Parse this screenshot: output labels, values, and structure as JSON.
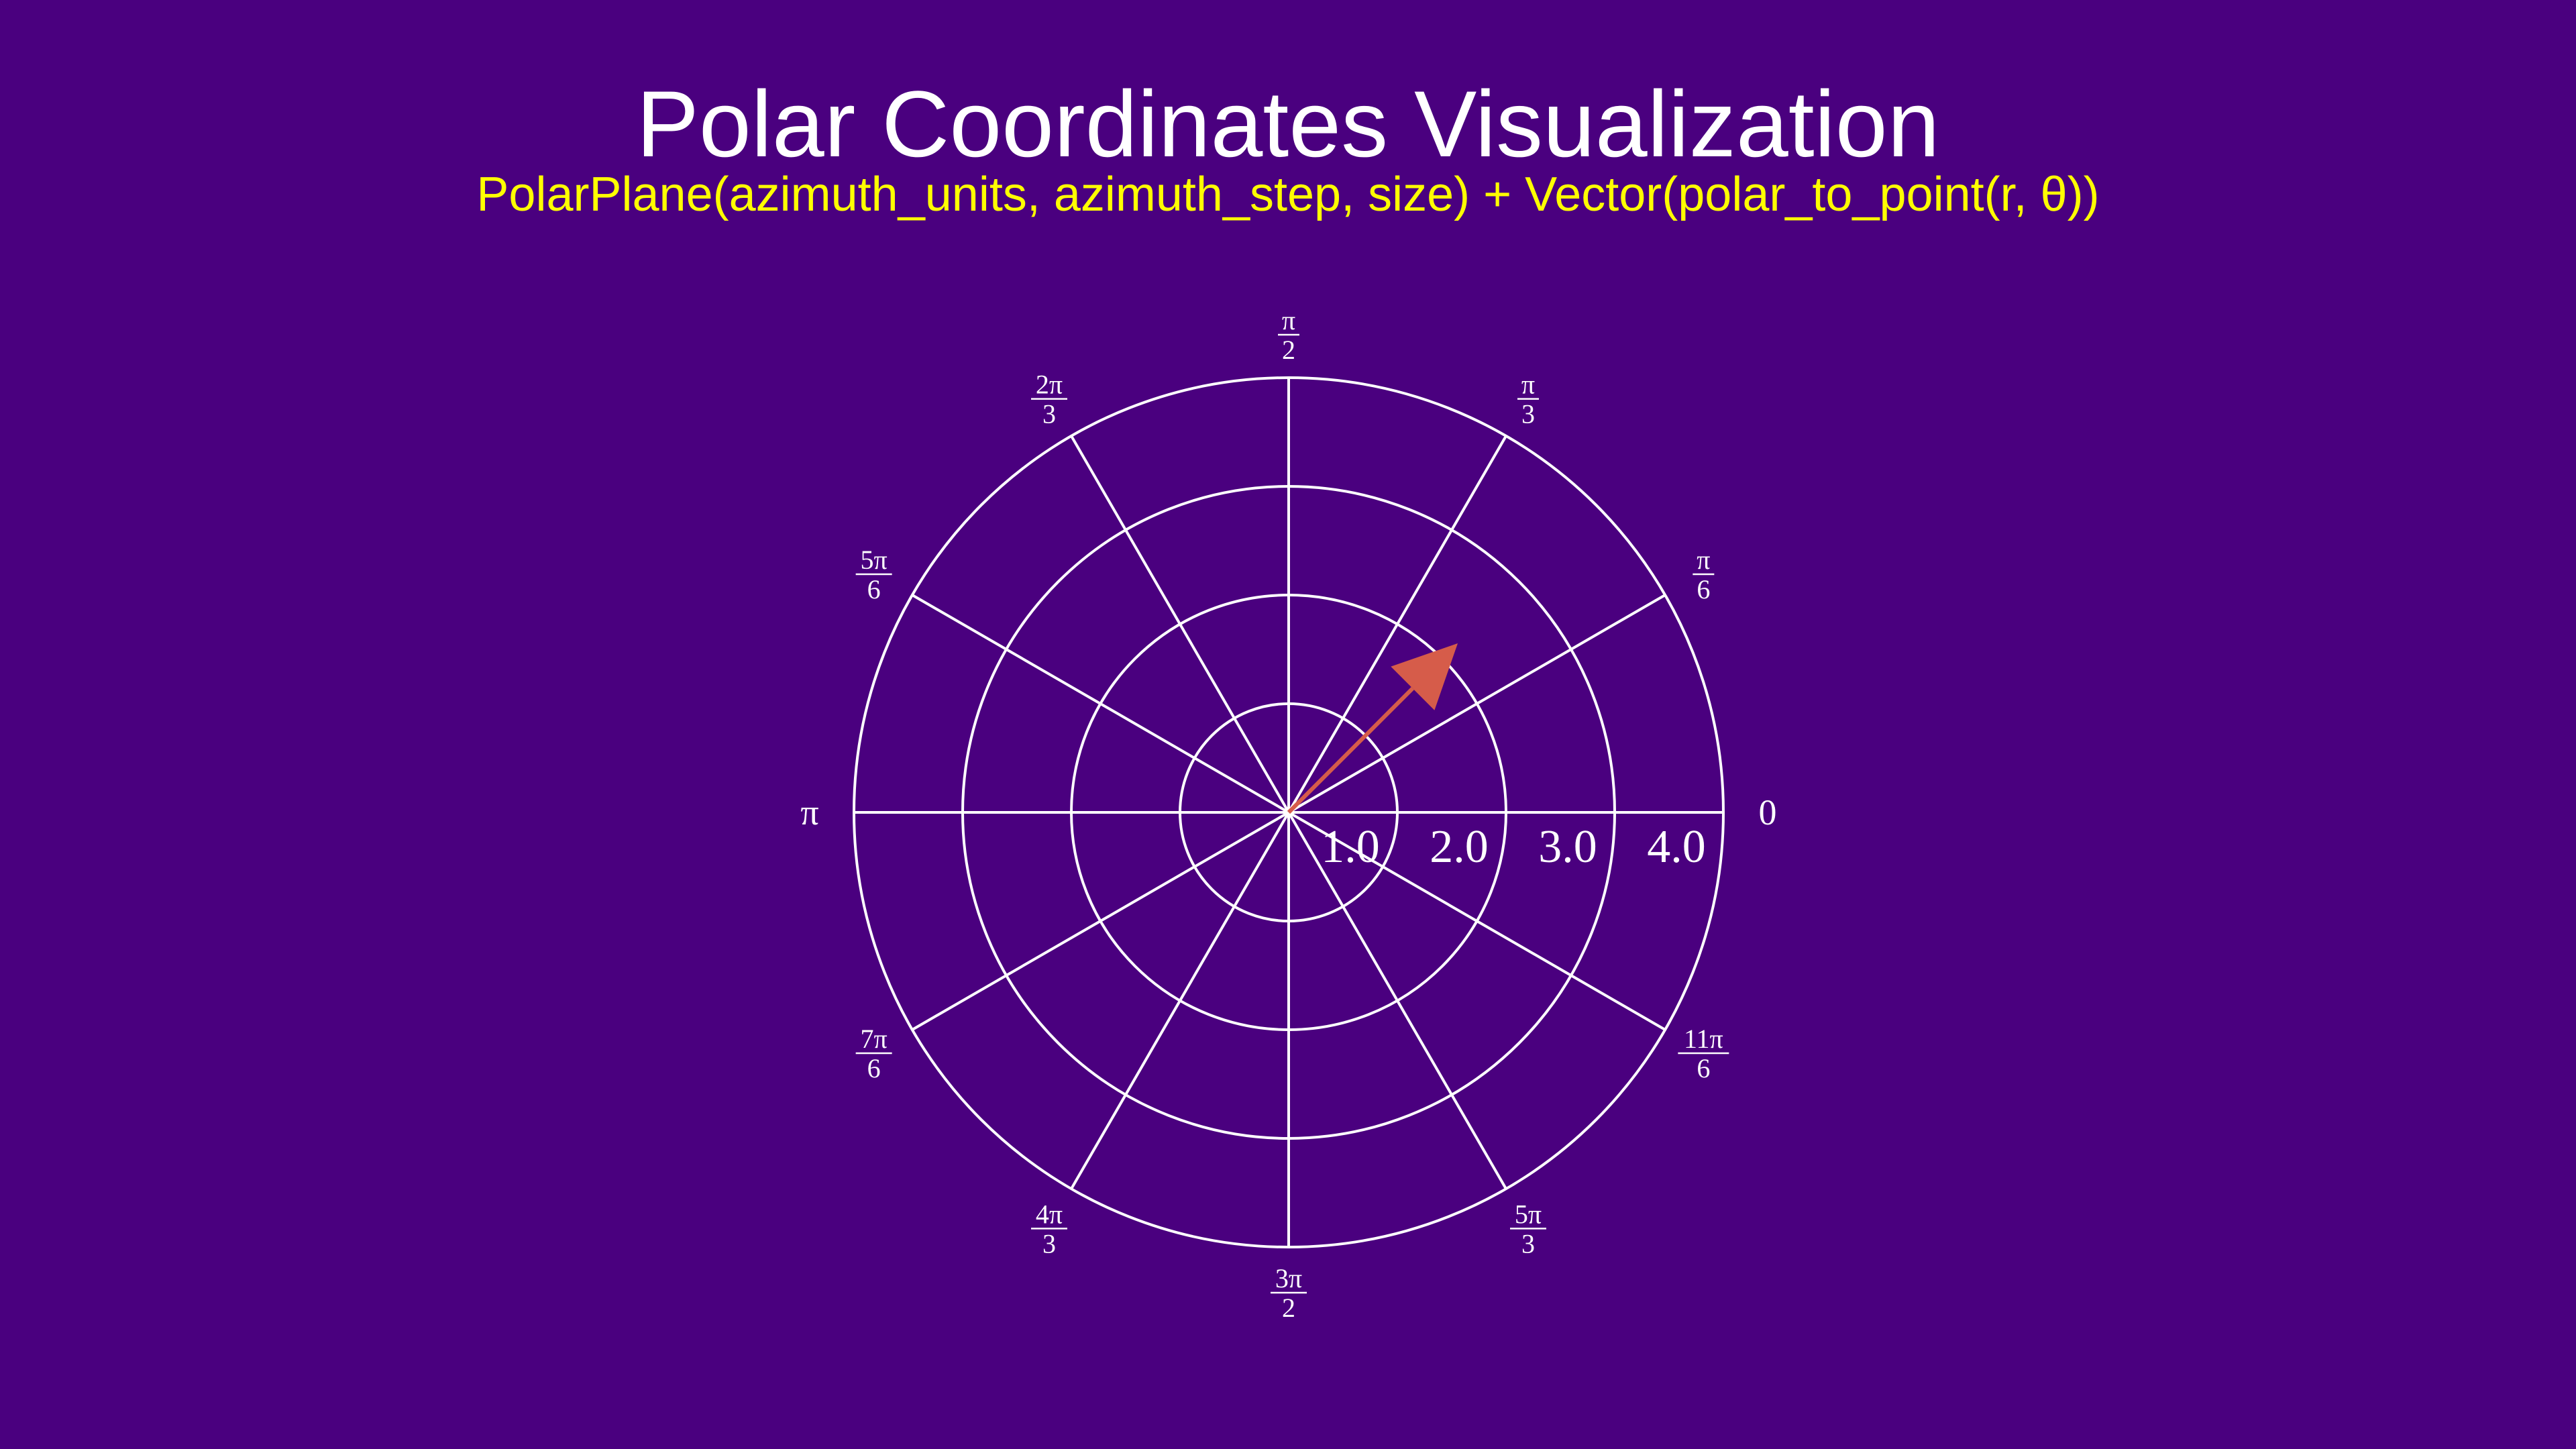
{
  "title": "Polar Coordinates Visualization",
  "subtitle": "PolarPlane(azimuth_units,  azimuth_step,  size) + Vector(polar_to_point(r, θ))",
  "colors": {
    "background": "#4a007f",
    "grid": "#ffffff",
    "vector": "#d65c4a",
    "title": "#ffffff",
    "subtitle": "#ffff00"
  },
  "polar_plane": {
    "max_radius": 4,
    "radius_labels": [
      "1.0",
      "2.0",
      "3.0",
      "4.0"
    ],
    "azimuth_step_degrees": 30,
    "azimuth_labels": [
      {
        "deg": 0,
        "num": "0",
        "den": ""
      },
      {
        "deg": 30,
        "num": "π",
        "den": "6"
      },
      {
        "deg": 60,
        "num": "π",
        "den": "3"
      },
      {
        "deg": 90,
        "num": "π",
        "den": "2"
      },
      {
        "deg": 120,
        "num": "2π",
        "den": "3"
      },
      {
        "deg": 150,
        "num": "5π",
        "den": "6"
      },
      {
        "deg": 180,
        "num": "π",
        "den": ""
      },
      {
        "deg": 210,
        "num": "7π",
        "den": "6"
      },
      {
        "deg": 240,
        "num": "4π",
        "den": "3"
      },
      {
        "deg": 270,
        "num": "3π",
        "den": "2"
      },
      {
        "deg": 300,
        "num": "5π",
        "den": "3"
      },
      {
        "deg": 330,
        "num": "11π",
        "den": "6"
      }
    ]
  },
  "vector": {
    "r": 2.2,
    "theta_degrees": 45
  }
}
